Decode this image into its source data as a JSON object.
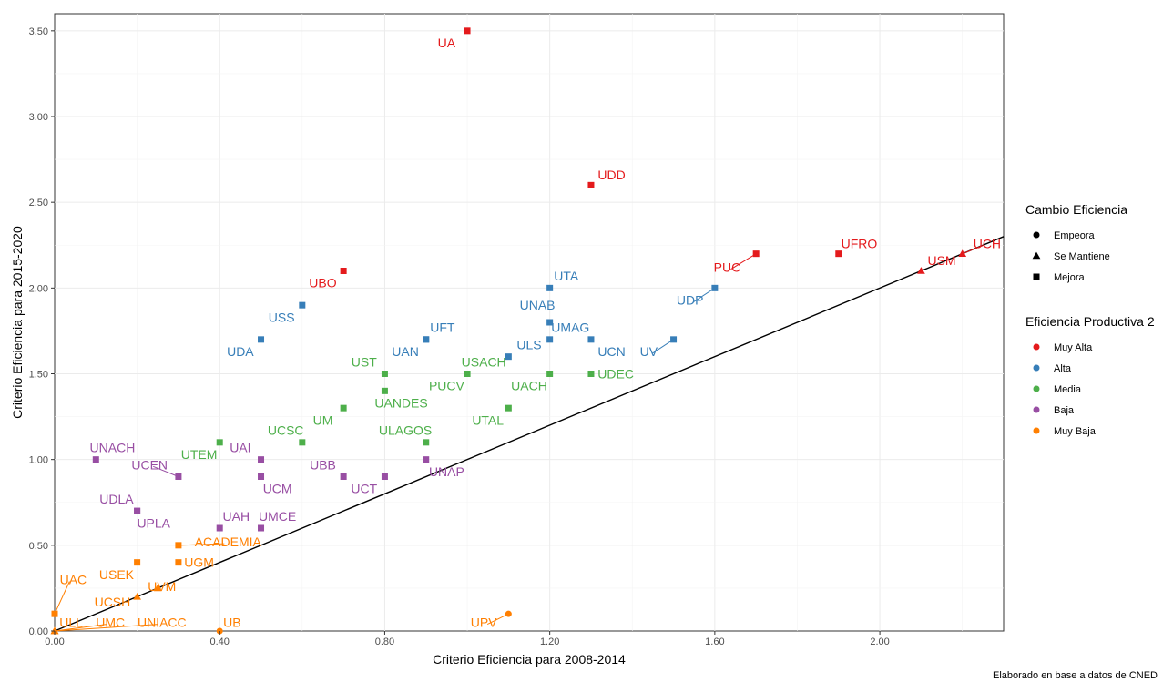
{
  "chart_data": {
    "type": "scatter",
    "title": "",
    "xlabel": "Criterio Eficiencia para 2008-2014",
    "ylabel": "Criterio Eficiencia para 2015-2020",
    "caption": "Elaborado en base a datos de CNED",
    "xlim": [
      0,
      2.3
    ],
    "ylim": [
      0,
      3.6
    ],
    "x_ticks": [
      0,
      0.4,
      0.8,
      1.2,
      1.6,
      2.0
    ],
    "x_tick_labels": [
      "0.00",
      "0.40",
      "0.80",
      "1.20",
      "1.60",
      "2.00"
    ],
    "y_ticks": [
      0,
      0.5,
      1.0,
      1.5,
      2.0,
      2.5,
      3.0,
      3.5
    ],
    "y_tick_labels": [
      "0.00",
      "0.50",
      "1.00",
      "1.50",
      "2.00",
      "2.50",
      "3.00",
      "3.50"
    ],
    "grid": true,
    "reference_line": {
      "type": "identity",
      "from": [
        0,
        0
      ],
      "to": [
        2.3,
        2.3
      ]
    },
    "legend_placement": "right",
    "legend_shape": {
      "title": "Cambio Eficiencia",
      "entries": [
        {
          "label": "Empeora",
          "shape": "circle"
        },
        {
          "label": "Se Mantiene",
          "shape": "triangle"
        },
        {
          "label": "Mejora",
          "shape": "square"
        }
      ]
    },
    "legend_color": {
      "title": "Eficiencia Productiva 2",
      "entries": [
        {
          "label": "Muy Alta",
          "color": "#e41a1c"
        },
        {
          "label": "Alta",
          "color": "#377eb8"
        },
        {
          "label": "Media",
          "color": "#4daf4a"
        },
        {
          "label": "Baja",
          "color": "#984ea3"
        },
        {
          "label": "Muy Baja",
          "color": "#ff7f00"
        }
      ]
    },
    "points": [
      {
        "label": "UA",
        "x": 1.0,
        "y": 3.5,
        "shape": "square",
        "group": "Muy Alta",
        "lx": 0.95,
        "ly": 3.43
      },
      {
        "label": "UDD",
        "x": 1.3,
        "y": 2.6,
        "shape": "square",
        "group": "Muy Alta",
        "lx": 1.35,
        "ly": 2.66
      },
      {
        "label": "UFRO",
        "x": 1.9,
        "y": 2.2,
        "shape": "square",
        "group": "Muy Alta",
        "lx": 1.95,
        "ly": 2.26
      },
      {
        "label": "PUC",
        "x": 1.7,
        "y": 2.2,
        "shape": "square",
        "group": "Muy Alta",
        "lx": 1.63,
        "ly": 2.12
      },
      {
        "label": "UCH",
        "x": 2.2,
        "y": 2.2,
        "shape": "triangle",
        "group": "Muy Alta",
        "lx": 2.26,
        "ly": 2.26
      },
      {
        "label": "USM",
        "x": 2.1,
        "y": 2.1,
        "shape": "triangle",
        "group": "Muy Alta",
        "lx": 2.15,
        "ly": 2.16
      },
      {
        "label": "UBO",
        "x": 0.7,
        "y": 2.1,
        "shape": "square",
        "group": "Muy Alta",
        "lx": 0.65,
        "ly": 2.03
      },
      {
        "label": "UTA",
        "x": 1.2,
        "y": 2.0,
        "shape": "square",
        "group": "Alta",
        "lx": 1.24,
        "ly": 2.07
      },
      {
        "label": "UDP",
        "x": 1.6,
        "y": 2.0,
        "shape": "square",
        "group": "Alta",
        "lx": 1.54,
        "ly": 1.93
      },
      {
        "label": "USS",
        "x": 0.6,
        "y": 1.9,
        "shape": "square",
        "group": "Alta",
        "lx": 0.55,
        "ly": 1.83
      },
      {
        "label": "UNAB",
        "x": 1.2,
        "y": 1.8,
        "shape": "square",
        "group": "Alta",
        "lx": 1.17,
        "ly": 1.9
      },
      {
        "label": "UMAG",
        "x": 1.2,
        "y": 1.7,
        "shape": "square",
        "group": "Alta",
        "lx": 1.25,
        "ly": 1.77
      },
      {
        "label": "UFT",
        "x": 0.9,
        "y": 1.7,
        "shape": "square",
        "group": "Alta",
        "lx": 0.94,
        "ly": 1.77
      },
      {
        "label": "UDA",
        "x": 0.5,
        "y": 1.7,
        "shape": "square",
        "group": "Alta",
        "lx": 0.45,
        "ly": 1.63
      },
      {
        "label": "UCN",
        "x": 1.3,
        "y": 1.7,
        "shape": "square",
        "group": "Alta",
        "lx": 1.35,
        "ly": 1.63
      },
      {
        "label": "UV",
        "x": 1.5,
        "y": 1.7,
        "shape": "square",
        "group": "Alta",
        "lx": 1.44,
        "ly": 1.63
      },
      {
        "label": "UAN",
        "x": 0.9,
        "y": 1.7,
        "shape": "square",
        "group": "Alta",
        "lx": 0.85,
        "ly": 1.63
      },
      {
        "label": "ULS",
        "x": 1.1,
        "y": 1.6,
        "shape": "square",
        "group": "Alta",
        "lx": 1.15,
        "ly": 1.67
      },
      {
        "label": "UST",
        "x": 0.8,
        "y": 1.5,
        "shape": "square",
        "group": "Media",
        "lx": 0.75,
        "ly": 1.57
      },
      {
        "label": "USACH",
        "x": 1.0,
        "y": 1.5,
        "shape": "square",
        "group": "Media",
        "lx": 1.04,
        "ly": 1.57
      },
      {
        "label": "UDEC",
        "x": 1.3,
        "y": 1.5,
        "shape": "square",
        "group": "Media",
        "lx": 1.36,
        "ly": 1.5
      },
      {
        "label": "PUCV",
        "x": 1.0,
        "y": 1.5,
        "shape": "square",
        "group": "Media",
        "lx": 0.95,
        "ly": 1.43
      },
      {
        "label": "UACH",
        "x": 1.2,
        "y": 1.5,
        "shape": "square",
        "group": "Media",
        "lx": 1.15,
        "ly": 1.43
      },
      {
        "label": "UANDES",
        "x": 0.8,
        "y": 1.4,
        "shape": "square",
        "group": "Media",
        "lx": 0.84,
        "ly": 1.33
      },
      {
        "label": "UM",
        "x": 0.7,
        "y": 1.3,
        "shape": "square",
        "group": "Media",
        "lx": 0.65,
        "ly": 1.23
      },
      {
        "label": "UTAL",
        "x": 1.1,
        "y": 1.3,
        "shape": "square",
        "group": "Media",
        "lx": 1.05,
        "ly": 1.23
      },
      {
        "label": "UCSC",
        "x": 0.6,
        "y": 1.1,
        "shape": "square",
        "group": "Media",
        "lx": 0.56,
        "ly": 1.17
      },
      {
        "label": "ULAGOS",
        "x": 0.9,
        "y": 1.1,
        "shape": "square",
        "group": "Media",
        "lx": 0.85,
        "ly": 1.17
      },
      {
        "label": "UTEM",
        "x": 0.4,
        "y": 1.1,
        "shape": "square",
        "group": "Media",
        "lx": 0.35,
        "ly": 1.03
      },
      {
        "label": "UNACH",
        "x": 0.1,
        "y": 1.0,
        "shape": "square",
        "group": "Baja",
        "lx": 0.14,
        "ly": 1.07
      },
      {
        "label": "UAI",
        "x": 0.5,
        "y": 1.0,
        "shape": "square",
        "group": "Baja",
        "lx": 0.45,
        "ly": 1.07
      },
      {
        "label": "UCEN",
        "x": 0.3,
        "y": 0.9,
        "shape": "square",
        "group": "Baja",
        "lx": 0.23,
        "ly": 0.97
      },
      {
        "label": "UBB",
        "x": 0.7,
        "y": 0.9,
        "shape": "square",
        "group": "Baja",
        "lx": 0.65,
        "ly": 0.97
      },
      {
        "label": "UNAP",
        "x": 0.9,
        "y": 1.0,
        "shape": "square",
        "group": "Baja",
        "lx": 0.95,
        "ly": 0.93
      },
      {
        "label": "UCM",
        "x": 0.5,
        "y": 0.9,
        "shape": "square",
        "group": "Baja",
        "lx": 0.54,
        "ly": 0.83
      },
      {
        "label": "UCT",
        "x": 0.8,
        "y": 0.9,
        "shape": "square",
        "group": "Baja",
        "lx": 0.75,
        "ly": 0.83
      },
      {
        "label": "UDLA",
        "x": 0.2,
        "y": 0.7,
        "shape": "square",
        "group": "Baja",
        "lx": 0.15,
        "ly": 0.77
      },
      {
        "label": "UPLA",
        "x": 0.2,
        "y": 0.7,
        "shape": "square",
        "group": "Baja",
        "lx": 0.24,
        "ly": 0.63
      },
      {
        "label": "UAH",
        "x": 0.4,
        "y": 0.6,
        "shape": "square",
        "group": "Baja",
        "lx": 0.44,
        "ly": 0.67
      },
      {
        "label": "UMCE",
        "x": 0.5,
        "y": 0.6,
        "shape": "square",
        "group": "Baja",
        "lx": 0.54,
        "ly": 0.67
      },
      {
        "label": "ACADEMIA",
        "x": 0.3,
        "y": 0.5,
        "shape": "square",
        "group": "Muy Baja",
        "lx": 0.42,
        "ly": 0.52
      },
      {
        "label": "USEK",
        "x": 0.2,
        "y": 0.4,
        "shape": "square",
        "group": "Muy Baja",
        "lx": 0.15,
        "ly": 0.33
      },
      {
        "label": "UGM",
        "x": 0.3,
        "y": 0.4,
        "shape": "square",
        "group": "Muy Baja",
        "lx": 0.35,
        "ly": 0.4
      },
      {
        "label": "UVM",
        "x": 0.25,
        "y": 0.25,
        "shape": "triangle",
        "group": "Muy Baja",
        "lx": 0.26,
        "ly": 0.26
      },
      {
        "label": "UAC",
        "x": 0.0,
        "y": 0.1,
        "shape": "square",
        "group": "Muy Baja",
        "lx": 0.045,
        "ly": 0.3
      },
      {
        "label": "UCSH",
        "x": 0.2,
        "y": 0.2,
        "shape": "triangle",
        "group": "Muy Baja",
        "lx": 0.14,
        "ly": 0.17
      },
      {
        "label": "ULL",
        "x": 0.0,
        "y": 0.0,
        "shape": "triangle",
        "group": "Muy Baja",
        "lx": 0.04,
        "ly": 0.05
      },
      {
        "label": "UMC",
        "x": 0.0,
        "y": 0.0,
        "shape": "triangle",
        "group": "Muy Baja",
        "lx": 0.135,
        "ly": 0.05
      },
      {
        "label": "UNIACC",
        "x": 0.0,
        "y": 0.0,
        "shape": "triangle",
        "group": "Muy Baja",
        "lx": 0.26,
        "ly": 0.05
      },
      {
        "label": "UB",
        "x": 0.4,
        "y": 0.0,
        "shape": "circle",
        "group": "Muy Baja",
        "lx": 0.43,
        "ly": 0.05
      },
      {
        "label": "UPV",
        "x": 1.1,
        "y": 0.1,
        "shape": "circle",
        "group": "Muy Baja",
        "lx": 1.04,
        "ly": 0.05
      }
    ]
  }
}
